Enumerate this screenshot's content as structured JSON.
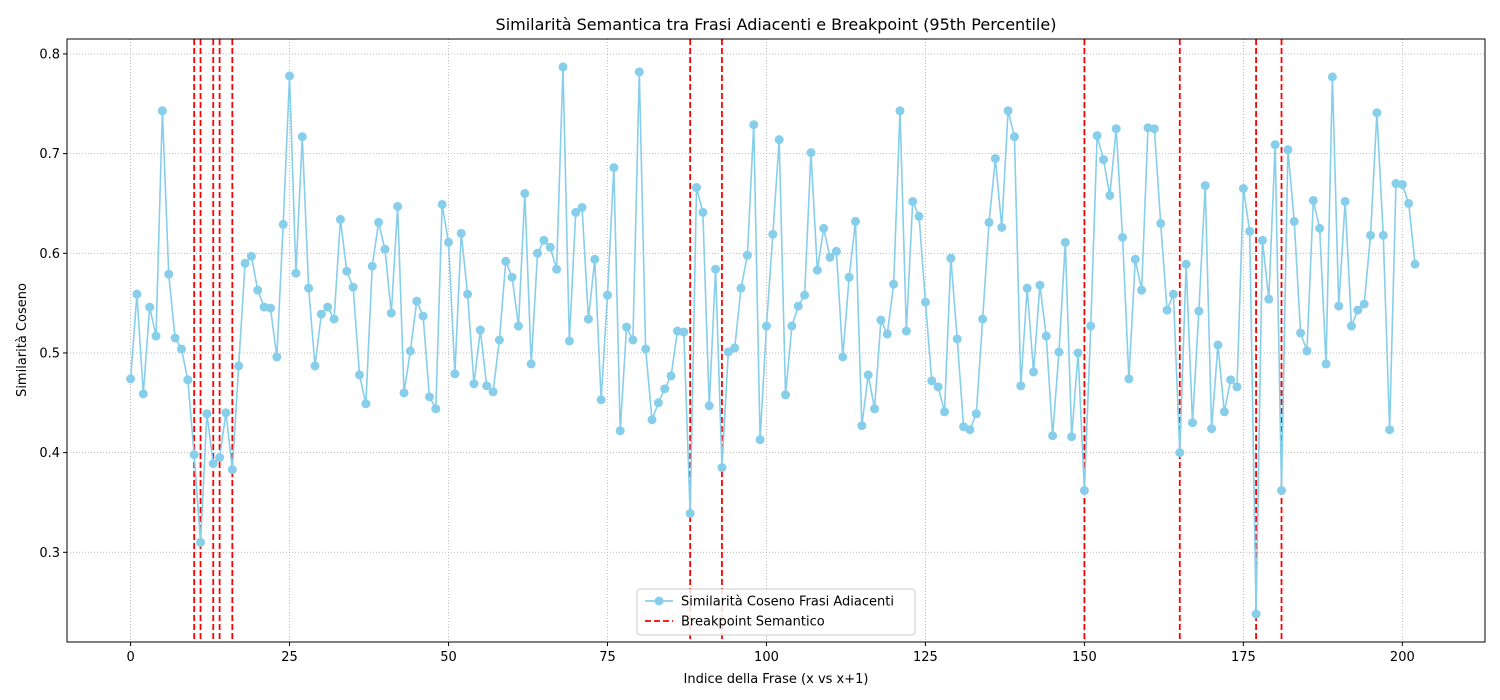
{
  "chart_data": {
    "type": "line",
    "title": "Similarità Semantica tra Frasi Adiacenti e Breakpoint (95th Percentile)",
    "xlabel": "Indice della Frase (x vs x+1)",
    "ylabel": "Similarità Coseno",
    "xlim": [
      -10,
      213
    ],
    "ylim": [
      0.21,
      0.815
    ],
    "xticks": [
      0,
      25,
      50,
      75,
      100,
      125,
      150,
      175,
      200
    ],
    "yticks": [
      0.3,
      0.4,
      0.5,
      0.6,
      0.7,
      0.8
    ],
    "grid": true,
    "legend_position": "bottom-center",
    "series": [
      {
        "name": "Similarità Coseno Frasi Adiacenti",
        "color": "#87ceeb",
        "marker": "circle",
        "values": [
          0.474,
          0.559,
          0.459,
          0.546,
          0.517,
          0.743,
          0.579,
          0.515,
          0.504,
          0.473,
          0.398,
          0.31,
          0.439,
          0.389,
          0.395,
          0.44,
          0.383,
          0.487,
          0.59,
          0.597,
          0.563,
          0.546,
          0.545,
          0.496,
          0.629,
          0.778,
          0.58,
          0.717,
          0.565,
          0.487,
          0.539,
          0.546,
          0.534,
          0.634,
          0.582,
          0.566,
          0.478,
          0.449,
          0.587,
          0.631,
          0.604,
          0.54,
          0.647,
          0.46,
          0.502,
          0.552,
          0.537,
          0.456,
          0.444,
          0.649,
          0.611,
          0.479,
          0.62,
          0.559,
          0.469,
          0.523,
          0.467,
          0.461,
          0.513,
          0.592,
          0.576,
          0.527,
          0.66,
          0.489,
          0.6,
          0.613,
          0.606,
          0.584,
          0.787,
          0.512,
          0.641,
          0.646,
          0.534,
          0.594,
          0.453,
          0.558,
          0.686,
          0.422,
          0.526,
          0.513,
          0.782,
          0.504,
          0.433,
          0.45,
          0.464,
          0.477,
          0.522,
          0.521,
          0.339,
          0.666,
          0.641,
          0.447,
          0.584,
          0.385,
          0.501,
          0.505,
          0.565,
          0.598,
          0.729,
          0.413,
          0.527,
          0.619,
          0.714,
          0.458,
          0.527,
          0.547,
          0.558,
          0.701,
          0.583,
          0.625,
          0.596,
          0.602,
          0.496,
          0.576,
          0.632,
          0.427,
          0.478,
          0.444,
          0.533,
          0.519,
          0.569,
          0.743,
          0.522,
          0.652,
          0.637,
          0.551,
          0.472,
          0.466,
          0.441,
          0.595,
          0.514,
          0.426,
          0.423,
          0.439,
          0.534,
          0.631,
          0.695,
          0.626,
          0.743,
          0.717,
          0.467,
          0.565,
          0.481,
          0.568,
          0.517,
          0.417,
          0.501,
          0.611,
          0.416,
          0.5,
          0.362,
          0.527,
          0.718,
          0.694,
          0.658,
          0.725,
          0.616,
          0.474,
          0.594,
          0.563,
          0.726,
          0.725,
          0.63,
          0.543,
          0.559,
          0.4,
          0.589,
          0.43,
          0.542,
          0.668,
          0.424,
          0.508,
          0.441,
          0.473,
          0.466,
          0.665,
          0.622,
          0.238,
          0.613,
          0.554,
          0.709,
          0.362,
          0.704,
          0.632,
          0.52,
          0.502,
          0.653,
          0.625,
          0.489,
          0.777,
          0.547,
          0.652,
          0.527,
          0.543,
          0.549,
          0.618,
          0.741,
          0.618,
          0.423,
          0.67,
          0.669,
          0.65,
          0.589
        ]
      }
    ],
    "breakpoints": {
      "name": "Breakpoint Semantico",
      "color": "#ff0000",
      "style": "dashed",
      "x": [
        10,
        11,
        13,
        14,
        16,
        88,
        93,
        150,
        165,
        177,
        181
      ]
    }
  }
}
